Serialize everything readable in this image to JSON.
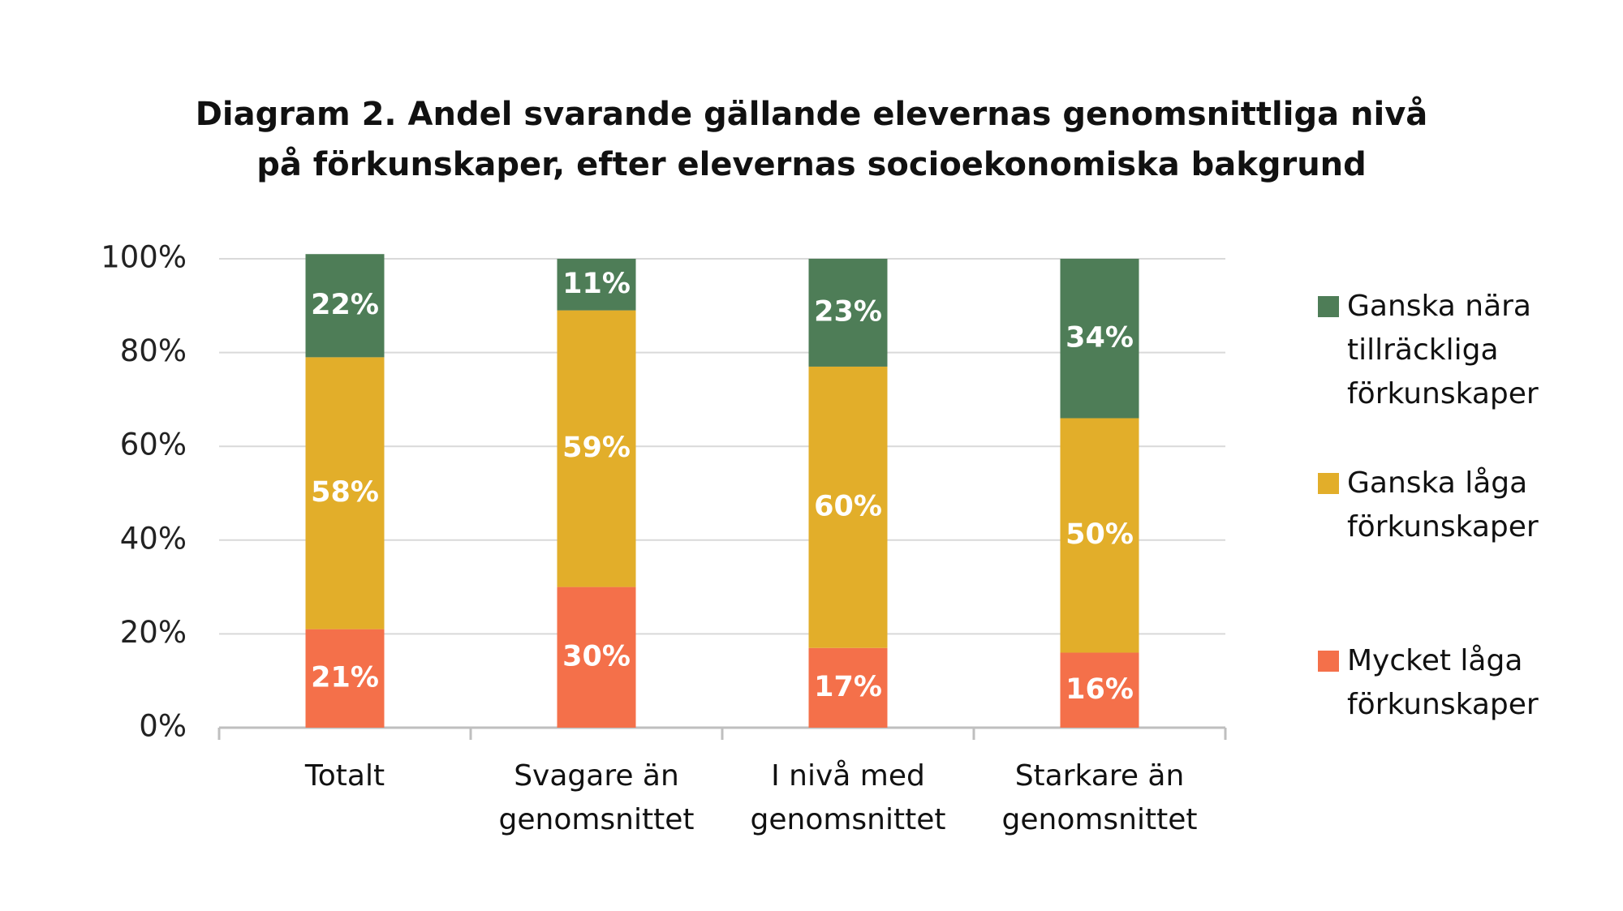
{
  "chart_data": {
    "type": "stacked_bar",
    "title": [
      "Diagram 2. Andel svarande gällande elevernas genomsnittliga nivå",
      "på förkunskaper, efter elevernas socioekonomiska bakgrund"
    ],
    "categories": [
      "Totalt",
      "Svagare än genomsnittet",
      "I nivå med genomsnittet",
      "Starkare än genomsnittet"
    ],
    "series": [
      {
        "name": "Mycket låga förkunskaper",
        "color": "#f4704a",
        "values": [
          21,
          30,
          17,
          16
        ],
        "value_labels": [
          "21%",
          "30%",
          "17%",
          "16%"
        ]
      },
      {
        "name": "Ganska låga förkunskaper",
        "color": "#e2ae2a",
        "values": [
          58,
          59,
          60,
          50
        ],
        "value_labels": [
          "58%",
          "59%",
          "60%",
          "50%"
        ]
      },
      {
        "name": "Ganska nära tillräckliga förkunskaper",
        "color": "#4e7d57",
        "values": [
          22,
          11,
          23,
          34
        ],
        "value_labels": [
          "22%",
          "11%",
          "23%",
          "34%"
        ]
      }
    ],
    "ylim": [
      0,
      100
    ],
    "yticks": [
      {
        "value": 0,
        "label": "0%"
      },
      {
        "value": 20,
        "label": "20%"
      },
      {
        "value": 40,
        "label": "40%"
      },
      {
        "value": 60,
        "label": "60%"
      },
      {
        "value": 80,
        "label": "80%"
      },
      {
        "value": 100,
        "label": "100%"
      }
    ],
    "grid": true,
    "legend": "right"
  }
}
